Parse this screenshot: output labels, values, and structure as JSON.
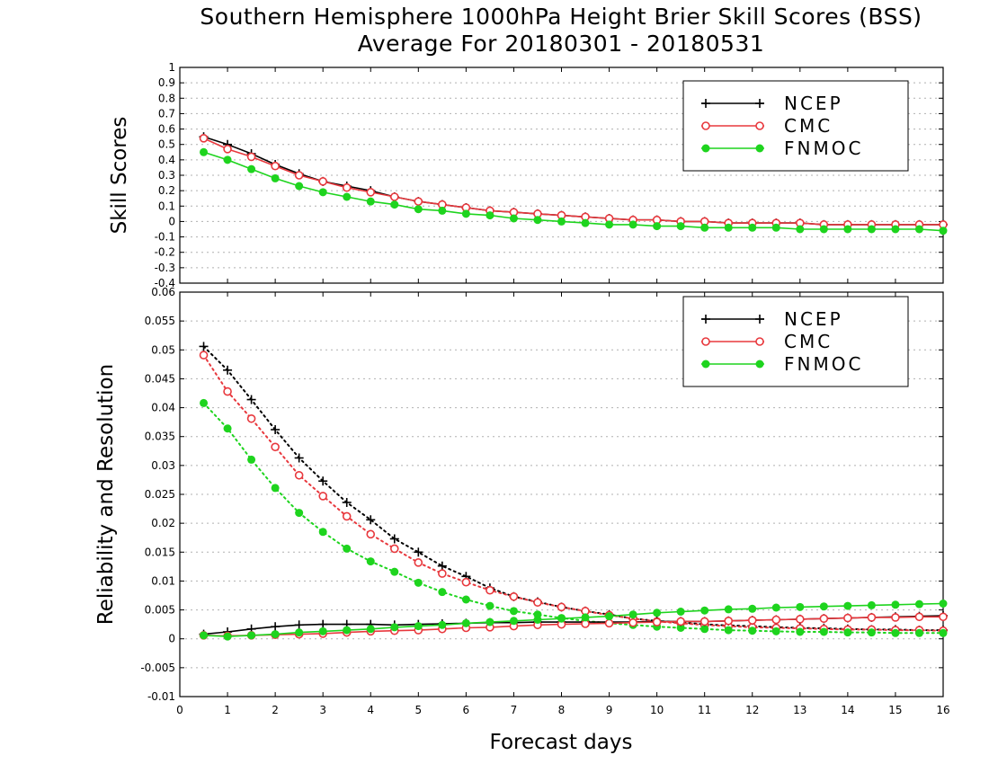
{
  "title_line1": "Southern Hemisphere 1000hPa Height Brier Skill Scores (BSS)",
  "title_line2": "Average For 20180301 - 20180531",
  "xlabel": "Forecast days",
  "colors": {
    "NCEP": "#000000",
    "CMC": "#e8383d",
    "FNMOC": "#1ed41e"
  },
  "chart_data": [
    {
      "type": "line",
      "ylabel": "Skill Scores",
      "xlim": [
        0,
        16
      ],
      "ylim": [
        -0.4,
        1
      ],
      "yticks": [
        "-0.4",
        "-0.3",
        "-0.2",
        "-0.1",
        "0",
        "0.1",
        "0.2",
        "0.3",
        "0.4",
        "0.5",
        "0.6",
        "0.7",
        "0.8",
        "0.9",
        "1"
      ],
      "xticks": [
        "0",
        "1",
        "2",
        "3",
        "4",
        "5",
        "6",
        "7",
        "8",
        "9",
        "10",
        "11",
        "12",
        "13",
        "14",
        "15",
        "16"
      ],
      "grid": true,
      "legend": "top-right",
      "x": [
        0.5,
        1,
        1.5,
        2,
        2.5,
        3,
        3.5,
        4,
        4.5,
        5,
        5.5,
        6,
        6.5,
        7,
        7.5,
        8,
        8.5,
        9,
        9.5,
        10,
        10.5,
        11,
        11.5,
        12,
        12.5,
        13,
        13.5,
        14,
        14.5,
        15,
        15.5,
        16
      ],
      "series": [
        {
          "name": "NCEP",
          "marker": "plus",
          "style": "solid",
          "values": [
            0.55,
            0.5,
            0.44,
            0.37,
            0.31,
            0.26,
            0.23,
            0.2,
            0.16,
            0.13,
            0.11,
            0.09,
            0.07,
            0.06,
            0.05,
            0.04,
            0.03,
            0.02,
            0.01,
            0.01,
            0.0,
            0.0,
            -0.01,
            -0.01,
            -0.01,
            -0.01,
            -0.02,
            -0.02,
            -0.02,
            -0.02,
            -0.02,
            -0.02
          ]
        },
        {
          "name": "CMC",
          "marker": "circle-open",
          "style": "solid",
          "values": [
            0.54,
            0.47,
            0.42,
            0.36,
            0.3,
            0.26,
            0.22,
            0.19,
            0.16,
            0.13,
            0.11,
            0.09,
            0.07,
            0.06,
            0.05,
            0.04,
            0.03,
            0.02,
            0.01,
            0.01,
            0.0,
            0.0,
            -0.01,
            -0.01,
            -0.01,
            -0.01,
            -0.02,
            -0.02,
            -0.02,
            -0.02,
            -0.02,
            -0.02
          ]
        },
        {
          "name": "FNMOC",
          "marker": "circle-filled",
          "style": "solid",
          "values": [
            0.45,
            0.4,
            0.34,
            0.28,
            0.23,
            0.19,
            0.16,
            0.13,
            0.11,
            0.08,
            0.07,
            0.05,
            0.04,
            0.02,
            0.01,
            0.0,
            -0.01,
            -0.02,
            -0.02,
            -0.03,
            -0.03,
            -0.04,
            -0.04,
            -0.04,
            -0.04,
            -0.05,
            -0.05,
            -0.05,
            -0.05,
            -0.05,
            -0.05,
            -0.06
          ]
        }
      ]
    },
    {
      "type": "line",
      "ylabel": "Reliability and Resolution",
      "xlim": [
        0,
        16
      ],
      "ylim": [
        -0.01,
        0.06
      ],
      "yticks": [
        "-0.01",
        "-0.005",
        "0",
        "0.005",
        "0.01",
        "0.015",
        "0.02",
        "0.025",
        "0.03",
        "0.035",
        "0.04",
        "0.045",
        "0.05",
        "0.055",
        "0.06"
      ],
      "xticks": [
        "0",
        "1",
        "2",
        "3",
        "4",
        "5",
        "6",
        "7",
        "8",
        "9",
        "10",
        "11",
        "12",
        "13",
        "14",
        "15",
        "16"
      ],
      "grid": true,
      "legend": "top-right",
      "x": [
        0.5,
        1,
        1.5,
        2,
        2.5,
        3,
        3.5,
        4,
        4.5,
        5,
        5.5,
        6,
        6.5,
        7,
        7.5,
        8,
        8.5,
        9,
        9.5,
        10,
        10.5,
        11,
        11.5,
        12,
        12.5,
        13,
        13.5,
        14,
        14.5,
        15,
        15.5,
        16
      ],
      "series": [
        {
          "name": "NCEP",
          "role": "resolution",
          "marker": "plus",
          "style": "dotted",
          "values": [
            0.0506,
            0.0465,
            0.0414,
            0.0362,
            0.0313,
            0.0273,
            0.0236,
            0.0206,
            0.0173,
            0.015,
            0.0126,
            0.0108,
            0.0088,
            0.0073,
            0.0064,
            0.0055,
            0.0048,
            0.0042,
            0.0035,
            0.0031,
            0.0028,
            0.0025,
            0.0023,
            0.0022,
            0.002,
            0.0019,
            0.0018,
            0.0017,
            0.0016,
            0.0016,
            0.0015,
            0.0015
          ]
        },
        {
          "name": "CMC",
          "role": "resolution",
          "marker": "circle-open",
          "style": "dotted",
          "values": [
            0.0491,
            0.0428,
            0.0381,
            0.0332,
            0.0283,
            0.0247,
            0.0212,
            0.0181,
            0.0156,
            0.0132,
            0.0113,
            0.0098,
            0.0084,
            0.0073,
            0.0063,
            0.0055,
            0.0048,
            0.0041,
            0.0035,
            0.003,
            0.0027,
            0.0024,
            0.0022,
            0.002,
            0.0019,
            0.0018,
            0.0017,
            0.0016,
            0.0016,
            0.0015,
            0.0015,
            0.0014
          ]
        },
        {
          "name": "FNMOC",
          "role": "resolution",
          "marker": "circle-filled",
          "style": "dotted",
          "values": [
            0.0408,
            0.0364,
            0.031,
            0.0261,
            0.0218,
            0.0185,
            0.0156,
            0.0134,
            0.0116,
            0.0097,
            0.0081,
            0.0068,
            0.0057,
            0.0048,
            0.0042,
            0.0036,
            0.0031,
            0.0027,
            0.0024,
            0.0021,
            0.0019,
            0.0017,
            0.0015,
            0.0014,
            0.0013,
            0.0012,
            0.0012,
            0.0011,
            0.0011,
            0.001,
            0.001,
            0.001
          ]
        },
        {
          "name": "NCEP",
          "role": "reliability",
          "marker": "plus",
          "style": "solid",
          "values": [
            0.0008,
            0.0012,
            0.0017,
            0.0021,
            0.0024,
            0.0025,
            0.0025,
            0.0025,
            0.0024,
            0.0025,
            0.0026,
            0.0027,
            0.0028,
            0.0028,
            0.0029,
            0.0029,
            0.0029,
            0.0029,
            0.0029,
            0.003,
            0.003,
            0.003,
            0.0031,
            0.0032,
            0.0033,
            0.0034,
            0.0035,
            0.0036,
            0.0037,
            0.0038,
            0.0039,
            0.004
          ]
        },
        {
          "name": "CMC",
          "role": "reliability",
          "marker": "circle-open",
          "style": "solid",
          "values": [
            0.0006,
            0.0005,
            0.0006,
            0.0007,
            0.0008,
            0.0009,
            0.0011,
            0.0013,
            0.0014,
            0.0015,
            0.0017,
            0.0019,
            0.002,
            0.0022,
            0.0024,
            0.0025,
            0.0026,
            0.0027,
            0.0028,
            0.0029,
            0.003,
            0.003,
            0.0031,
            0.0032,
            0.0033,
            0.0034,
            0.0035,
            0.0036,
            0.0037,
            0.0037,
            0.0038,
            0.0038
          ]
        },
        {
          "name": "FNMOC",
          "role": "reliability",
          "marker": "circle-filled",
          "style": "solid",
          "values": [
            0.0006,
            0.0004,
            0.0006,
            0.0008,
            0.0011,
            0.0013,
            0.0015,
            0.0017,
            0.002,
            0.0022,
            0.0024,
            0.0027,
            0.0029,
            0.0031,
            0.0033,
            0.0035,
            0.0037,
            0.0039,
            0.0042,
            0.0045,
            0.0047,
            0.0049,
            0.0051,
            0.0052,
            0.0054,
            0.0055,
            0.0056,
            0.0057,
            0.0058,
            0.0059,
            0.006,
            0.0061
          ]
        }
      ]
    }
  ]
}
